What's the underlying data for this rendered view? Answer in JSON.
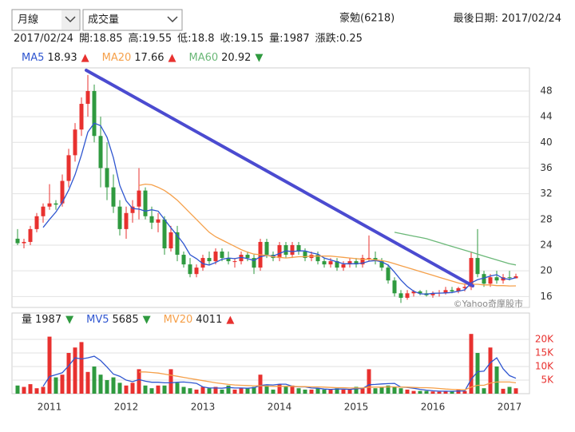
{
  "controls": {
    "period": "月線",
    "indicator": "成交量"
  },
  "header": {
    "stock": "豪勉(6218)",
    "last_date_label": "最後日期:",
    "last_date": "2017/02/24"
  },
  "chart_data": [
    {
      "type": "candlestick",
      "info_labels": {
        "open": "開:",
        "high": "高:",
        "low": "低:",
        "close": "收:",
        "volume": "量:",
        "change": "漲跌:"
      },
      "change": 0.25,
      "watermark": "©Yahoo奇摩股市",
      "up_color": "#e8312f",
      "down_color": "#2f9a3f",
      "open": [
        25,
        24.3,
        24.5,
        26.5,
        28.5,
        30,
        30.5,
        30.5,
        34,
        38,
        42,
        46,
        48,
        41,
        36,
        33,
        30,
        26.5,
        29,
        30,
        32.5,
        28.5,
        27.5,
        28,
        23.5,
        26,
        22.5,
        21,
        19.5,
        20.5,
        22,
        21.5,
        23,
        22,
        21.5,
        21.5,
        22.5,
        22,
        20.5,
        24.5,
        22.5,
        22,
        24,
        22.5,
        24,
        23,
        22,
        22.5,
        21.5,
        21,
        21.5,
        20.5,
        21,
        21.5,
        21,
        22,
        22,
        21.5,
        20.5,
        18.5,
        16.5,
        15.8,
        16.5,
        16.8,
        16.5,
        16.2,
        16.5,
        16.6,
        17,
        16.8,
        17.3,
        17.5,
        22,
        19.5,
        18,
        19,
        18.5,
        19,
        18.85
      ],
      "high": [
        26.5,
        25,
        27,
        29,
        30.5,
        33.5,
        31,
        35,
        39,
        43,
        47,
        50.5,
        49,
        44,
        40,
        35,
        31,
        30,
        31,
        36,
        33,
        30,
        29,
        28.5,
        27,
        27,
        23,
        22,
        21,
        22.5,
        23,
        23.5,
        23.5,
        23,
        22,
        23,
        23,
        22.5,
        25,
        25,
        23,
        24.5,
        24.5,
        24.5,
        24.5,
        23.5,
        23,
        23,
        22,
        22,
        22,
        21.5,
        22,
        22,
        22.5,
        25.5,
        23,
        22,
        21,
        19,
        17,
        17,
        17,
        17,
        17,
        16.8,
        17,
        17.5,
        17.5,
        17.5,
        18,
        23,
        26.5,
        20,
        19.5,
        20,
        19.5,
        20,
        19.55
      ],
      "low": [
        24,
        23.5,
        24,
        26,
        27.5,
        29.5,
        29.5,
        30,
        33,
        37,
        41,
        44,
        40,
        33,
        31,
        29,
        25.5,
        25,
        27.5,
        28,
        28,
        26.5,
        26,
        22.5,
        23,
        21.5,
        20.5,
        19,
        19,
        20,
        21,
        21,
        21.5,
        21,
        20.5,
        21,
        21.5,
        19.5,
        20,
        22,
        21.5,
        21.5,
        22,
        22,
        22.5,
        21.5,
        21.5,
        21,
        20.5,
        20.5,
        20,
        20,
        20.5,
        20.5,
        20.5,
        21.5,
        21,
        20,
        18,
        16,
        15,
        15.5,
        16,
        16.2,
        16,
        15.8,
        16,
        16.3,
        16.5,
        16.5,
        16.8,
        17,
        19,
        17.5,
        17.5,
        18,
        18,
        18.5,
        18.8
      ],
      "close": [
        24.3,
        24.5,
        26.5,
        28.5,
        30,
        30.5,
        30.3,
        34,
        38,
        42,
        46,
        48,
        41,
        36,
        33,
        30,
        26.5,
        29,
        30,
        32.5,
        28.5,
        27.5,
        28,
        23.5,
        26,
        22.5,
        21,
        19.5,
        20.5,
        22,
        21.5,
        23,
        22,
        21.5,
        21.5,
        22.5,
        22,
        20.5,
        24.5,
        22.5,
        22,
        24,
        22.5,
        24,
        23,
        22,
        22.5,
        21.5,
        21,
        21.5,
        20.5,
        21,
        21.5,
        21,
        22,
        22,
        21.5,
        20.5,
        18.5,
        16.5,
        15.8,
        16.5,
        16.8,
        16.5,
        16.2,
        16.5,
        16.6,
        17,
        16.8,
        17.3,
        17.5,
        22,
        19.5,
        18,
        19,
        18.5,
        19,
        18.9,
        19.15
      ],
      "series": [
        {
          "name": "MA5",
          "color": "#2f56d0",
          "trend": "▲",
          "trend_color": "#e8312f",
          "values": [
            null,
            null,
            null,
            null,
            26.76,
            28,
            29.16,
            30.66,
            32.56,
            34.96,
            38.06,
            41.6,
            43,
            42.6,
            40.8,
            37.6,
            33.3,
            30.9,
            29.7,
            29.6,
            29.3,
            29.5,
            29.3,
            28,
            26.7,
            25.5,
            24.2,
            22.5,
            21.9,
            21.1,
            20.9,
            21.3,
            21.8,
            22,
            21.9,
            22.1,
            21.9,
            21.6,
            22.2,
            22.4,
            22.3,
            22.7,
            23.1,
            23,
            23.1,
            23.1,
            22.8,
            22.6,
            22,
            21.7,
            21.4,
            21.1,
            21.1,
            21.1,
            21.2,
            21.5,
            21.6,
            21.4,
            20.9,
            19.8,
            18.56,
            17.56,
            16.82,
            16.42,
            16.36,
            16.5,
            16.52,
            16.56,
            16.62,
            16.84,
            17.04,
            18.12,
            18.62,
            18.86,
            19.2,
            19.4,
            18.8,
            18.68,
            18.93
          ]
        },
        {
          "name": "MA20",
          "color": "#f5a04a",
          "trend": "▲",
          "trend_color": "#e8312f",
          "values": [
            null,
            null,
            null,
            null,
            null,
            null,
            null,
            null,
            null,
            null,
            null,
            null,
            null,
            null,
            null,
            null,
            null,
            null,
            null,
            33.3,
            33.5,
            33.4,
            33,
            32.5,
            31.8,
            31,
            30,
            29,
            28,
            27,
            26,
            25.3,
            24.8,
            24.3,
            23.8,
            23.3,
            22.9,
            22.6,
            22.5,
            22.4,
            22.2,
            22.1,
            22,
            22.1,
            22.2,
            22.2,
            22.3,
            22.3,
            22.3,
            22.3,
            22.2,
            22.1,
            22,
            21.9,
            21.8,
            21.8,
            21.7,
            21.6,
            21.4,
            21.1,
            20.8,
            20.5,
            20.2,
            19.9,
            19.6,
            19.3,
            19,
            18.7,
            18.4,
            18.1,
            17.9,
            17.9,
            17.9,
            17.8,
            17.8,
            17.7,
            17.7,
            17.65,
            17.66
          ]
        },
        {
          "name": "MA60",
          "color": "#6bb878",
          "trend": "▼",
          "trend_color": "#2f9a3f",
          "values": [
            null,
            null,
            null,
            null,
            null,
            null,
            null,
            null,
            null,
            null,
            null,
            null,
            null,
            null,
            null,
            null,
            null,
            null,
            null,
            null,
            null,
            null,
            null,
            null,
            null,
            null,
            null,
            null,
            null,
            null,
            null,
            null,
            null,
            null,
            null,
            null,
            null,
            null,
            null,
            null,
            null,
            null,
            null,
            null,
            null,
            null,
            null,
            null,
            null,
            null,
            null,
            null,
            null,
            null,
            null,
            null,
            null,
            null,
            null,
            26,
            25.8,
            25.6,
            25.4,
            25.2,
            25,
            24.7,
            24.4,
            24.1,
            23.8,
            23.5,
            23.2,
            22.9,
            22.6,
            22.3,
            22,
            21.7,
            21.4,
            21.1,
            20.92
          ]
        }
      ],
      "ylim": [
        14.3,
        51.6
      ],
      "yticks": [
        16,
        20,
        24,
        28,
        32,
        36,
        40,
        44,
        48
      ],
      "grid": true
    },
    {
      "type": "bar",
      "name": "量",
      "trend": "▼",
      "trend_color": "#2f9a3f",
      "categories": [
        null,
        null,
        null,
        null,
        null,
        "2011",
        null,
        null,
        null,
        null,
        null,
        null,
        null,
        null,
        null,
        null,
        null,
        "2012",
        null,
        null,
        null,
        null,
        null,
        null,
        null,
        null,
        null,
        null,
        null,
        "2013",
        null,
        null,
        null,
        null,
        null,
        null,
        null,
        null,
        null,
        null,
        null,
        "2014",
        null,
        null,
        null,
        null,
        null,
        null,
        null,
        null,
        null,
        null,
        null,
        "2015",
        null,
        null,
        null,
        null,
        null,
        null,
        null,
        null,
        null,
        null,
        null,
        "2016",
        null,
        null,
        null,
        null,
        null,
        null,
        null,
        null,
        null,
        null,
        null,
        "2017",
        null
      ],
      "values": [
        3000,
        2500,
        3500,
        2000,
        2500,
        21000,
        6000,
        7000,
        15000,
        17000,
        19000,
        8000,
        10000,
        7000,
        5000,
        6000,
        4000,
        3000,
        4000,
        9000,
        3000,
        2000,
        3000,
        3000,
        9000,
        4000,
        2500,
        2000,
        1500,
        2500,
        2000,
        2500,
        1500,
        3000,
        1500,
        2000,
        2000,
        2500,
        7000,
        3000,
        1500,
        3500,
        2500,
        3000,
        2000,
        1500,
        1500,
        2000,
        1500,
        1500,
        2000,
        1500,
        1500,
        2500,
        2000,
        9000,
        2000,
        2500,
        3000,
        2500,
        2000,
        1500,
        1000,
        1000,
        1000,
        800,
        700,
        1000,
        900,
        1500,
        1000,
        22000,
        15000,
        2000,
        17000,
        10000,
        1800,
        2500,
        1987
      ],
      "series": [
        {
          "name": "MV5",
          "color": "#2f56d0",
          "trend": "▼",
          "trend_color": "#2f9a3f",
          "values": [
            null,
            null,
            null,
            null,
            2700,
            6300,
            7000,
            7700,
            10300,
            13200,
            12800,
            13200,
            13800,
            12200,
            9800,
            7200,
            6400,
            5000,
            4400,
            5200,
            4600,
            4200,
            4200,
            4000,
            4000,
            4200,
            4300,
            4100,
            3800,
            2500,
            2100,
            2100,
            2000,
            2300,
            2100,
            2100,
            2000,
            2200,
            3000,
            3300,
            3200,
            3500,
            3500,
            2700,
            2500,
            2500,
            2100,
            2000,
            1700,
            1600,
            1700,
            1700,
            1600,
            1800,
            1900,
            3300,
            3400,
            3600,
            3700,
            3800,
            2400,
            2300,
            2000,
            1600,
            1300,
            1060,
            900,
            900,
            880,
            980,
            1020,
            5280,
            8080,
            8300,
            11400,
            13200,
            9160,
            6660,
            5685
          ]
        },
        {
          "name": "MV20",
          "color": "#f5a04a",
          "trend": "▲",
          "trend_color": "#e8312f",
          "values": [
            null,
            null,
            null,
            null,
            null,
            null,
            null,
            null,
            null,
            null,
            null,
            null,
            null,
            null,
            null,
            null,
            null,
            null,
            null,
            8000,
            8000,
            7800,
            7600,
            7200,
            6800,
            6400,
            6000,
            5600,
            5200,
            4800,
            4400,
            4000,
            3700,
            3400,
            3200,
            3100,
            3000,
            2900,
            2900,
            2800,
            2700,
            2700,
            2700,
            2700,
            2600,
            2600,
            2500,
            2500,
            2400,
            2300,
            2200,
            2200,
            2100,
            2100,
            2100,
            2400,
            2400,
            2400,
            2500,
            2500,
            2400,
            2400,
            2300,
            2200,
            2200,
            2100,
            1900,
            1700,
            1600,
            1500,
            1400,
            2400,
            3100,
            3100,
            3900,
            4300,
            4300,
            4300,
            4011
          ]
        }
      ],
      "ylim": [
        0,
        29700
      ],
      "yticks": [
        {
          "value": 5000,
          "label": "5K"
        },
        {
          "value": 10000,
          "label": "10K"
        },
        {
          "value": 15000,
          "label": "15K"
        },
        {
          "value": 20000,
          "label": "20K"
        }
      ],
      "grid": true
    }
  ]
}
